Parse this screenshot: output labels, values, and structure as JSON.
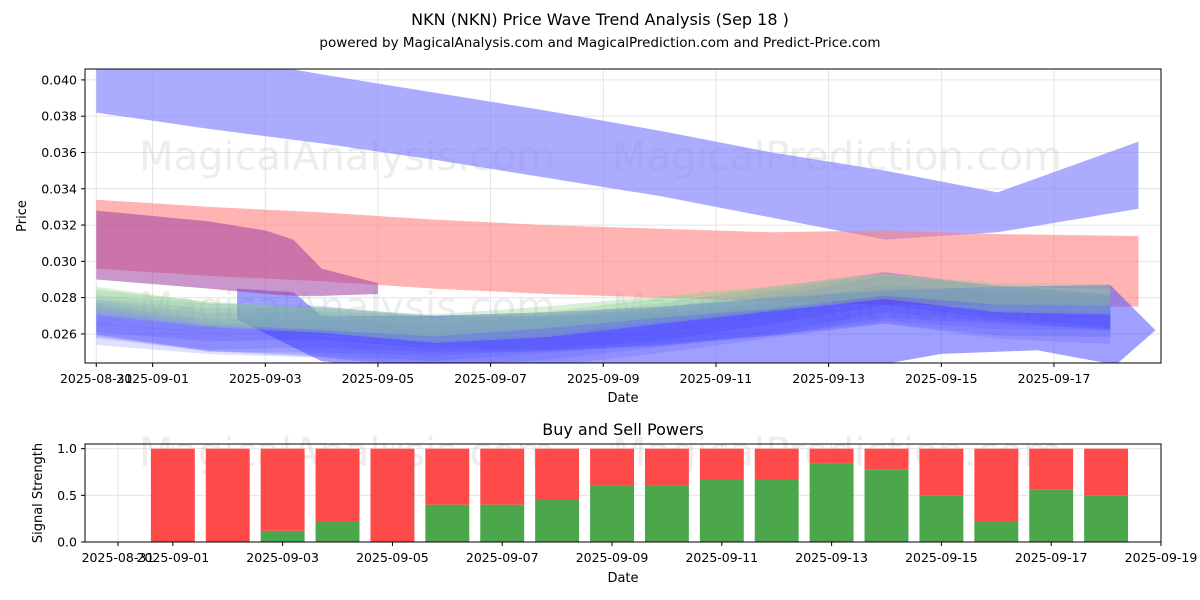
{
  "title": "NKN (NKN) Price Wave Trend Analysis (Sep 18 )",
  "subtitle": "powered by MagicalAnalysis.com and MagicalPrediction.com and Predict-Price.com",
  "watermarks": [
    "MagicalAnalysis.com",
    "MagicalPrediction.com"
  ],
  "chart_data": [
    {
      "type": "area",
      "xlabel": "Date",
      "ylabel": "Price",
      "xlim": [
        "2025-08-30.8",
        "2025-09-18.9"
      ],
      "ylim": [
        0.0244,
        0.0406
      ],
      "x_ticks": [
        "2025-08-31",
        "2025-09-01",
        "2025-09-03",
        "2025-09-05",
        "2025-09-07",
        "2025-09-09",
        "2025-09-11",
        "2025-09-13",
        "2025-09-15",
        "2025-09-17"
      ],
      "y_ticks": [
        0.026,
        0.028,
        0.03,
        0.032,
        0.034,
        0.036,
        0.038,
        0.04
      ],
      "grid": true,
      "bands": [
        {
          "color": "#8080ff",
          "opacity": 0.65,
          "x": [
            "2025-08-31",
            "2025-09-02",
            "2025-09-04",
            "2025-09-06",
            "2025-09-08",
            "2025-09-10",
            "2025-09-12",
            "2025-09-14",
            "2025-09-16",
            "2025-09-18.5"
          ],
          "upper": [
            0.0407,
            0.0414,
            0.0403,
            0.0393,
            0.0383,
            0.0372,
            0.036,
            0.035,
            0.0338,
            0.0366
          ],
          "lower": [
            0.0382,
            0.0373,
            0.0365,
            0.0356,
            0.0346,
            0.0336,
            0.0324,
            0.0312,
            0.0316,
            0.0329
          ]
        },
        {
          "color": "#ff8080",
          "opacity": 0.6,
          "x": [
            "2025-08-31",
            "2025-09-02",
            "2025-09-04",
            "2025-09-06",
            "2025-09-08",
            "2025-09-10",
            "2025-09-12",
            "2025-09-14",
            "2025-09-16",
            "2025-09-18.5"
          ],
          "upper": [
            0.0334,
            0.033,
            0.0327,
            0.0323,
            0.032,
            0.0318,
            0.0316,
            0.0317,
            0.0315,
            0.0314
          ],
          "lower": [
            0.0296,
            0.0292,
            0.0289,
            0.0285,
            0.0282,
            0.028,
            0.0278,
            0.0276,
            0.0276,
            0.0275
          ]
        },
        {
          "color": "#a040a0",
          "opacity": 0.55,
          "x": [
            "2025-08-31",
            "2025-09-02",
            "2025-09-03",
            "2025-09-03.5",
            "2025-09-04",
            "2025-09-05"
          ],
          "upper": [
            0.0328,
            0.0322,
            0.0317,
            0.0312,
            0.0296,
            0.0288
          ],
          "lower": [
            0.029,
            0.0285,
            0.0282,
            0.0281,
            0.0281,
            0.0282
          ]
        }
      ],
      "wave_color": "#4040ff",
      "wave_secondary_color": "#90d090",
      "wave_center": {
        "x": [
          "2025-08-31",
          "2025-09-02",
          "2025-09-04",
          "2025-09-06",
          "2025-09-08",
          "2025-09-10",
          "2025-09-12",
          "2025-09-14",
          "2025-09-16",
          "2025-09-18"
        ],
        "y": [
          0.027,
          0.0263,
          0.0262,
          0.0258,
          0.026,
          0.0265,
          0.0272,
          0.0281,
          0.0275,
          0.0272
        ]
      },
      "wave_lower_edge": {
        "x": [
          "2025-09-02.5",
          "2025-09-04",
          "2025-09-05.5",
          "2025-09-07",
          "2025-09-09",
          "2025-09-11",
          "2025-09-13",
          "2025-09-15",
          "2025-09-16.7",
          "2025-09-18.1"
        ],
        "y": [
          0.0268,
          0.0245,
          0.024,
          0.0235,
          0.0233,
          0.0232,
          0.0238,
          0.0249,
          0.0251,
          0.0243
        ]
      }
    },
    {
      "type": "bar",
      "title": "Buy and Sell Powers",
      "xlabel": "Date",
      "ylabel": "Signal Strength",
      "xlim": [
        "2025-08-30.4",
        "2025-09-19"
      ],
      "ylim": [
        0,
        1.05
      ],
      "x_ticks": [
        "2025-08-31",
        "2025-09-01",
        "2025-09-03",
        "2025-09-05",
        "2025-09-07",
        "2025-09-09",
        "2025-09-11",
        "2025-09-13",
        "2025-09-15",
        "2025-09-17",
        "2025-09-19"
      ],
      "y_ticks": [
        "0.0",
        "0.5",
        "1.0"
      ],
      "grid": true,
      "categories": [
        "2025-09-01",
        "2025-09-02",
        "2025-09-03",
        "2025-09-04",
        "2025-09-05",
        "2025-09-06",
        "2025-09-07",
        "2025-09-08",
        "2025-09-09",
        "2025-09-10",
        "2025-09-11",
        "2025-09-12",
        "2025-09-13",
        "2025-09-14",
        "2025-09-15",
        "2025-09-16",
        "2025-09-17",
        "2025-09-18"
      ],
      "series": [
        {
          "color": "#4ca64c",
          "values": [
            0.0,
            0.0,
            0.12,
            0.22,
            0.0,
            0.4,
            0.4,
            0.45,
            0.61,
            0.61,
            0.67,
            0.67,
            0.84,
            0.78,
            0.5,
            0.22,
            0.56,
            0.5
          ]
        },
        {
          "color": "#ff4a4a",
          "values": [
            1.0,
            1.0,
            0.88,
            0.78,
            1.0,
            0.6,
            0.6,
            0.55,
            0.39,
            0.39,
            0.33,
            0.33,
            0.16,
            0.22,
            0.5,
            0.78,
            0.44,
            0.5
          ]
        }
      ]
    }
  ]
}
